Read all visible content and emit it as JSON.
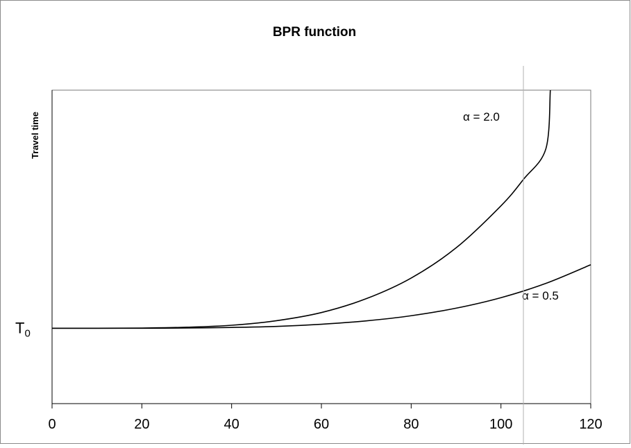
{
  "chart_data": {
    "type": "line",
    "title": "BPR function",
    "ylabel": "Travel time",
    "xlabel": "",
    "xlim": [
      0,
      120
    ],
    "ylim": [
      -0.38,
      1.2
    ],
    "x_ticks": [
      0,
      20,
      40,
      60,
      80,
      100,
      120
    ],
    "y_tick_labels": [
      {
        "label_main": "T",
        "label_sub": "0",
        "value": 0
      }
    ],
    "vertical_reference_x": 105,
    "grid": false,
    "series": [
      {
        "annotation": "α = 2.0",
        "x": [
          0,
          10,
          20,
          30,
          40,
          50,
          60,
          70,
          80,
          90,
          100,
          105,
          110,
          111
        ],
        "y": [
          0,
          0,
          0.001,
          0.005,
          0.015,
          0.038,
          0.079,
          0.149,
          0.253,
          0.405,
          0.617,
          0.75,
          0.904,
          1.2
        ]
      },
      {
        "annotation": "α = 0.5",
        "x": [
          0,
          10,
          20,
          30,
          40,
          50,
          60,
          70,
          80,
          90,
          100,
          110,
          120
        ],
        "y": [
          0,
          0,
          0,
          0.001,
          0.004,
          0.009,
          0.02,
          0.037,
          0.063,
          0.101,
          0.154,
          0.226,
          0.32
        ]
      }
    ]
  }
}
